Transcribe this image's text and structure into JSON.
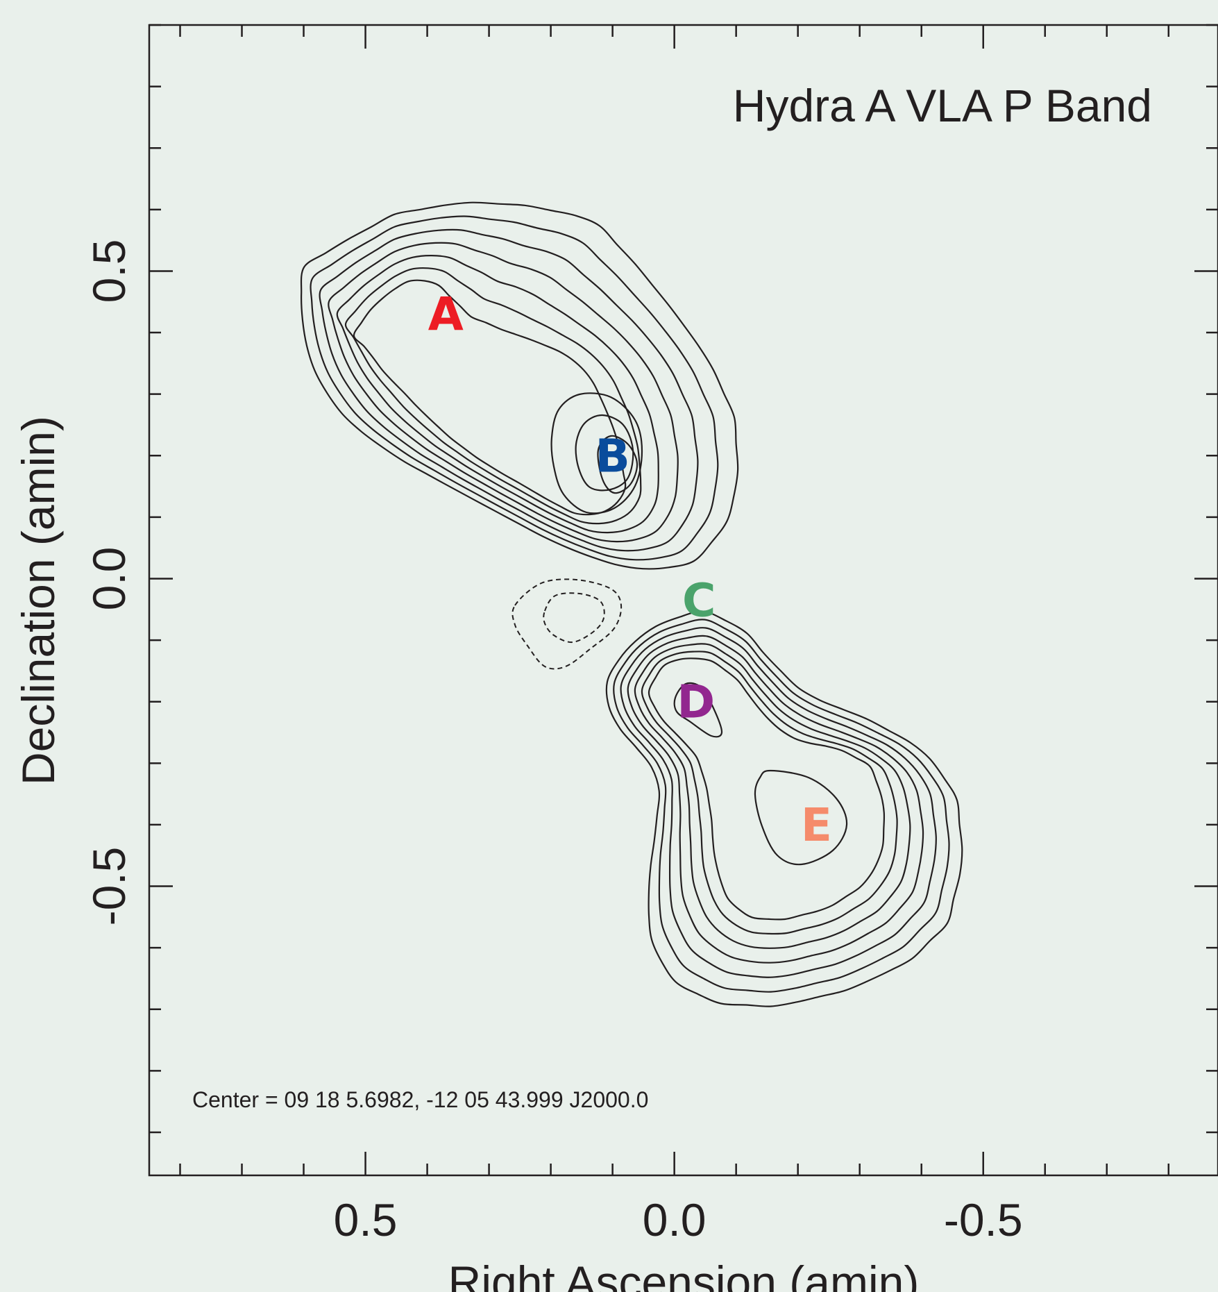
{
  "chart_data": {
    "type": "contour",
    "title": "Hydra A VLA P Band",
    "xlabel": "Right Ascension (amin)",
    "ylabel": "Declination (amin)",
    "xlim": [
      0.85,
      -0.88
    ],
    "ylim": [
      -0.97,
      0.9
    ],
    "x_ticks": [
      0.5,
      0.0,
      -0.5
    ],
    "x_tick_labels": [
      "0.5",
      "0.0",
      "-0.5"
    ],
    "y_ticks": [
      0.5,
      0.0,
      -0.5
    ],
    "y_tick_labels": [
      "0.5",
      "0.0",
      "-0.5"
    ],
    "minor_tick_step": 0.1,
    "center_note": "Center = 09 18  5.6982, -12 05 43.999 J2000.0",
    "components": [
      {
        "label": "A",
        "ra": 0.37,
        "dec": 0.43,
        "color": "#ed1c24"
      },
      {
        "label": "B",
        "ra": 0.1,
        "dec": 0.2,
        "color": "#0a4c9c"
      },
      {
        "label": "C",
        "ra": -0.04,
        "dec": -0.035,
        "color": "#4aa36b"
      },
      {
        "label": "D",
        "ra": -0.035,
        "dec": -0.2,
        "color": "#92278f"
      },
      {
        "label": "E",
        "ra": -0.23,
        "dec": -0.4,
        "color": "#f58b6b"
      }
    ],
    "contours": {
      "north_lobe_outer_levels": 7,
      "south_lobe_outer_levels": 7,
      "negative_levels": 2
    }
  }
}
